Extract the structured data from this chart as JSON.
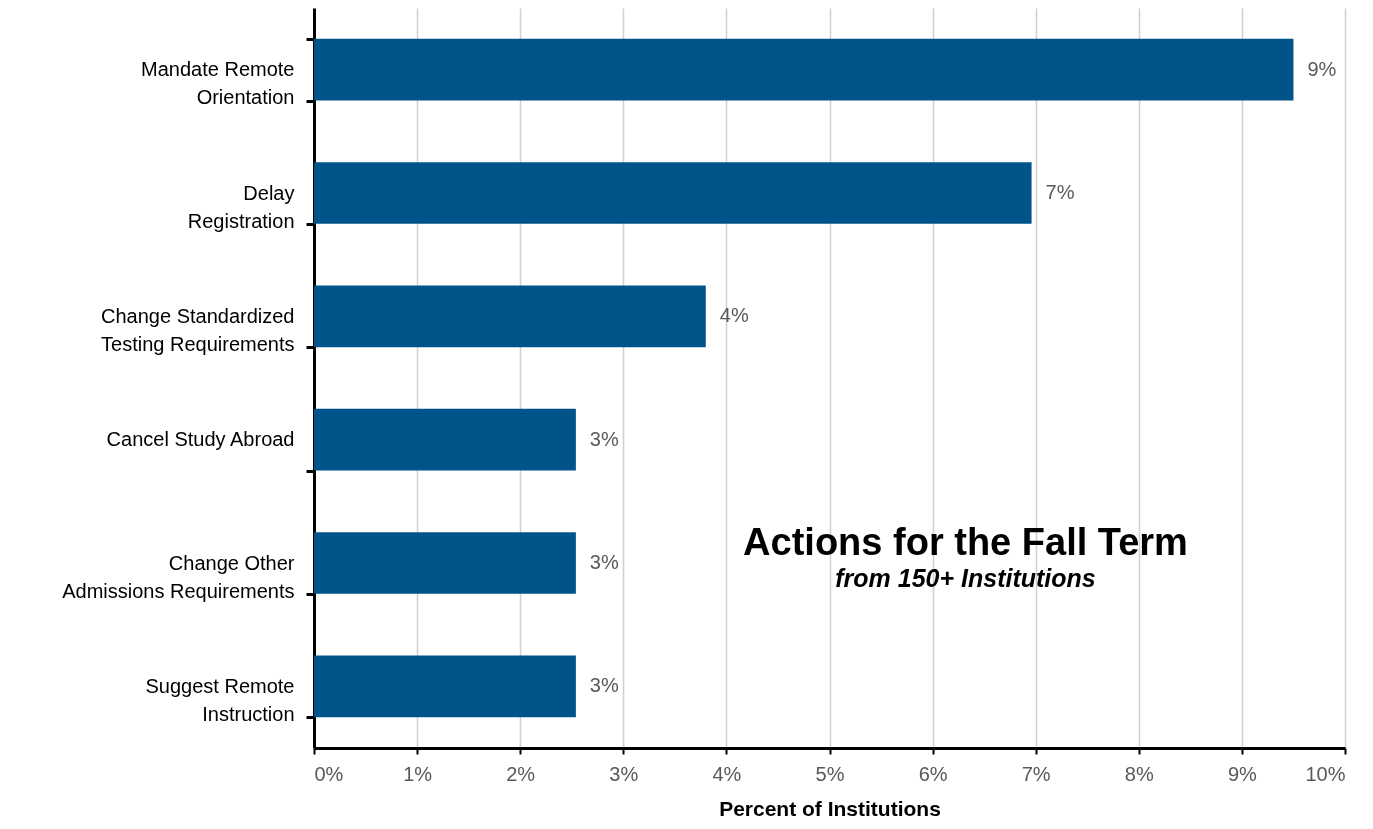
{
  "chart_data": {
    "type": "bar",
    "orientation": "horizontal",
    "title": "Actions for the Fall Term",
    "subtitle": "from 150+ Institutions",
    "xlabel": "Percent of Institutions",
    "categories": [
      "Mandate Remote\nOrientation",
      "Delay\nRegistration",
      "Change Standardized\nTesting Requirements",
      "Cancel Study Abroad",
      "Change Other\nAdmissions Requirements",
      "Suggest Remote\nInstruction"
    ],
    "values": [
      9.5,
      6.96,
      3.8,
      2.54,
      2.54,
      2.54
    ],
    "value_labels": [
      "9%",
      "7%",
      "4%",
      "3%",
      "3%",
      "3%"
    ],
    "color": "#00548a",
    "xlim": [
      0,
      10
    ],
    "xticks": [
      {
        "value": 0,
        "label": "0%"
      },
      {
        "value": 1,
        "label": "1%"
      },
      {
        "value": 2,
        "label": "2%"
      },
      {
        "value": 3,
        "label": "3%"
      },
      {
        "value": 4,
        "label": "4%"
      },
      {
        "value": 5,
        "label": "5%"
      },
      {
        "value": 6,
        "label": "6%"
      },
      {
        "value": 7,
        "label": "7%"
      },
      {
        "value": 8,
        "label": "8%"
      },
      {
        "value": 9,
        "label": "9%"
      },
      {
        "value": 10,
        "label": "10%"
      }
    ],
    "grid": "x"
  }
}
